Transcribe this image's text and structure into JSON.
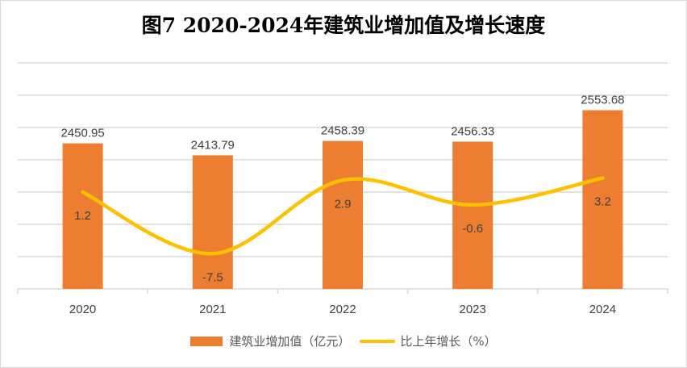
{
  "chart_data": {
    "type": "bar+line",
    "title": "图7 2020-2024年建筑业增加值及增长速度",
    "categories": [
      "2020",
      "2021",
      "2022",
      "2023",
      "2024"
    ],
    "series": [
      {
        "name": "建筑业增加值（亿元）",
        "type": "bar",
        "axis": "primary",
        "values": [
          2450.95,
          2413.79,
          2458.39,
          2456.33,
          2553.68
        ],
        "color": "#ed7d31"
      },
      {
        "name": "比上年增长（%）",
        "type": "line",
        "smooth": true,
        "axis": "secondary",
        "values": [
          1.2,
          -7.5,
          2.9,
          -0.6,
          3.2
        ],
        "color": "#ffc000"
      }
    ],
    "primary_ylim": [
      2000,
      2700
    ],
    "primary_grid_step": 100,
    "secondary_ylim": [
      -12.5,
      19.5
    ],
    "axes_labels_visible": false,
    "grid": true,
    "legend": "bottom"
  }
}
